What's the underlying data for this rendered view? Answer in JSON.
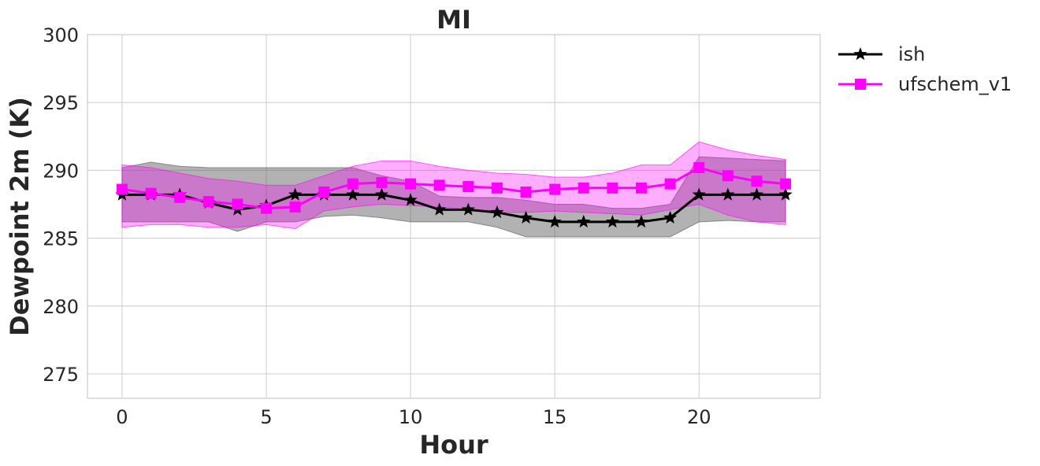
{
  "chart_data": {
    "type": "line",
    "title": "MI",
    "xlabel": "Hour",
    "ylabel": "Dewpoint 2m (K)",
    "xlim": [
      -1.2,
      24.2
    ],
    "ylim": [
      273.2,
      300
    ],
    "xticks": [
      0,
      5,
      10,
      15,
      20
    ],
    "yticks": [
      275,
      280,
      285,
      290,
      295,
      300
    ],
    "grid": true,
    "legend_position": "outside-top-right",
    "x": [
      0,
      1,
      2,
      3,
      4,
      5,
      6,
      7,
      8,
      9,
      10,
      11,
      12,
      13,
      14,
      15,
      16,
      17,
      18,
      19,
      20,
      21,
      22,
      23
    ],
    "series": [
      {
        "name": "ish",
        "color": "#000000",
        "band_color": "#555555",
        "marker": "star",
        "values": [
          288.2,
          288.2,
          288.2,
          287.6,
          287.1,
          287.4,
          288.2,
          288.2,
          288.2,
          288.2,
          287.8,
          287.1,
          287.1,
          286.9,
          286.5,
          286.2,
          286.2,
          286.2,
          286.2,
          286.5,
          288.2,
          288.2,
          288.2,
          288.2
        ],
        "band_upper": [
          290.2,
          290.6,
          290.3,
          290.2,
          290.2,
          290.2,
          290.2,
          290.2,
          290.2,
          289.6,
          289.2,
          288.1,
          288.0,
          288.0,
          287.8,
          287.5,
          287.5,
          287.2,
          287.2,
          287.5,
          291.0,
          290.9,
          290.8,
          290.7
        ],
        "band_lower": [
          286.2,
          286.2,
          286.2,
          286.2,
          285.5,
          286.2,
          286.2,
          286.6,
          286.7,
          286.5,
          286.2,
          286.2,
          286.2,
          285.8,
          285.1,
          285.1,
          285.1,
          285.1,
          285.1,
          285.1,
          286.2,
          286.3,
          286.2,
          286.2
        ]
      },
      {
        "name": "ufschem_v1",
        "color": "#ff00ff",
        "band_color": "#ff00ff",
        "marker": "square",
        "values": [
          288.6,
          288.3,
          288.0,
          287.7,
          287.5,
          287.2,
          287.3,
          288.4,
          289.0,
          289.1,
          289.0,
          288.9,
          288.8,
          288.7,
          288.4,
          288.6,
          288.7,
          288.7,
          288.7,
          289.0,
          290.2,
          289.6,
          289.2,
          289.0
        ],
        "band_upper": [
          290.4,
          290.2,
          289.8,
          289.4,
          289.2,
          288.9,
          288.9,
          289.6,
          290.3,
          290.7,
          290.7,
          290.3,
          290.0,
          289.8,
          289.7,
          289.5,
          289.5,
          289.8,
          290.4,
          290.4,
          292.1,
          291.5,
          291.1,
          290.8
        ],
        "band_lower": [
          285.8,
          286.0,
          286.0,
          285.8,
          285.8,
          286.0,
          285.7,
          287.0,
          287.3,
          287.5,
          287.4,
          287.3,
          287.1,
          286.9,
          286.9,
          287.0,
          286.9,
          286.8,
          286.7,
          287.1,
          287.5,
          286.7,
          286.2,
          286.0
        ]
      }
    ]
  }
}
